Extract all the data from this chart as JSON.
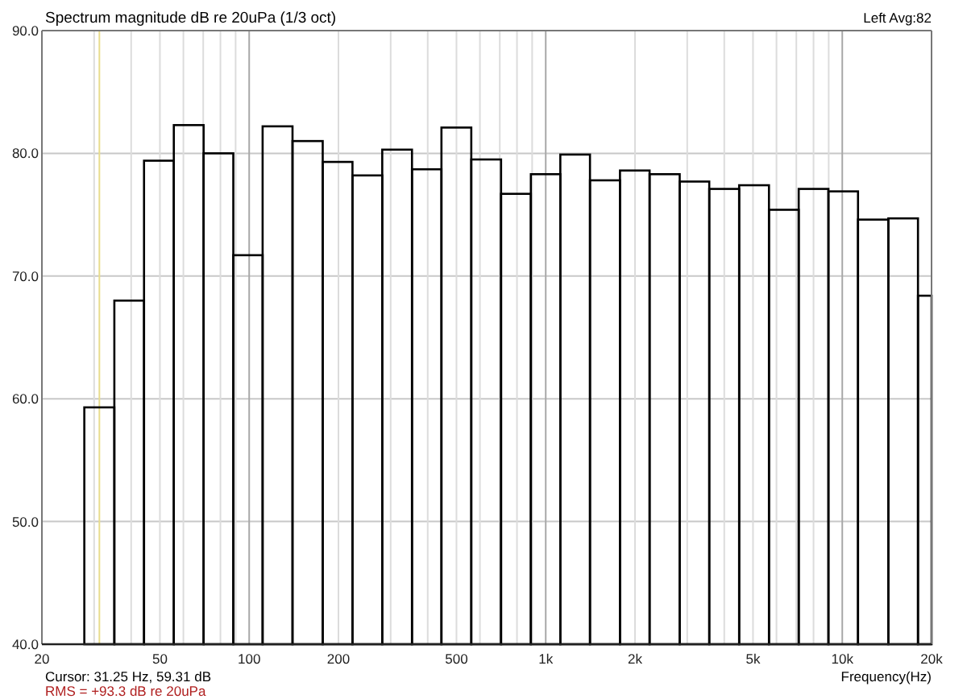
{
  "chart_data": {
    "type": "histogram",
    "title": "Spectrum magnitude dB re 20uPa (1/3 oct)",
    "xlabel": "Frequency(Hz)",
    "bins": [
      27.8,
      35.1,
      44.2,
      55.7,
      70.2,
      88.4,
      111,
      140,
      177,
      223,
      281,
      354,
      445,
      561,
      707,
      891,
      1120,
      1410,
      1780,
      2240,
      2830,
      3560,
      4490,
      5660,
      7130,
      8980,
      11300,
      14300,
      18000,
      20000
    ],
    "values": [
      59.3,
      68.0,
      79.4,
      82.3,
      80.0,
      71.7,
      82.2,
      81.0,
      79.3,
      78.2,
      80.3,
      78.7,
      82.1,
      79.5,
      76.7,
      78.3,
      79.9,
      77.8,
      78.6,
      78.3,
      77.7,
      77.1,
      77.4,
      75.4,
      77.1,
      76.9,
      74.6,
      74.7,
      68.4
    ],
    "color": "#000000",
    "log": "x",
    "grid": true,
    "xlim": [
      20,
      20000
    ],
    "ylim": [
      40,
      90
    ],
    "xticks": [
      20,
      {
        "value": 30,
        "label": null
      },
      {
        "value": 40,
        "label": null
      },
      50,
      {
        "value": 60,
        "label": null
      },
      {
        "value": 70,
        "label": null
      },
      {
        "value": 80,
        "label": null
      },
      {
        "value": 90,
        "label": null
      },
      100,
      200,
      {
        "value": 300,
        "label": null
      },
      {
        "value": 400,
        "label": null
      },
      500,
      {
        "value": 600,
        "label": null
      },
      {
        "value": 700,
        "label": null
      },
      {
        "value": 800,
        "label": null
      },
      {
        "value": 900,
        "label": null
      },
      {
        "value": 1000,
        "label": "1k"
      },
      {
        "value": 2000,
        "label": "2k"
      },
      {
        "value": 3000,
        "label": null
      },
      {
        "value": 4000,
        "label": null
      },
      {
        "value": 5000,
        "label": "5k"
      },
      {
        "value": 6000,
        "label": null
      },
      {
        "value": 7000,
        "label": null
      },
      {
        "value": 8000,
        "label": null
      },
      {
        "value": 9000,
        "label": null
      },
      {
        "value": 10000,
        "label": "10k"
      },
      {
        "value": 20000,
        "label": "20k"
      }
    ],
    "yticks": [
      {
        "value": 40,
        "label": "40.0"
      },
      {
        "value": 50,
        "label": "50.0"
      },
      {
        "value": 60,
        "label": "60.0"
      },
      {
        "value": 70,
        "label": "70.0"
      },
      {
        "value": 80,
        "label": "80.0"
      },
      {
        "value": 90,
        "label": "90.0"
      }
    ],
    "ref_lines": [
      {
        "axis": "x",
        "value": 31.25,
        "color": "#e8dc8c"
      }
    ],
    "annotations": [
      "Left Avg:82",
      "Cursor: 31.25 Hz, 59.31 dB",
      "RMS = +93.3 dB re 20uPa"
    ]
  }
}
